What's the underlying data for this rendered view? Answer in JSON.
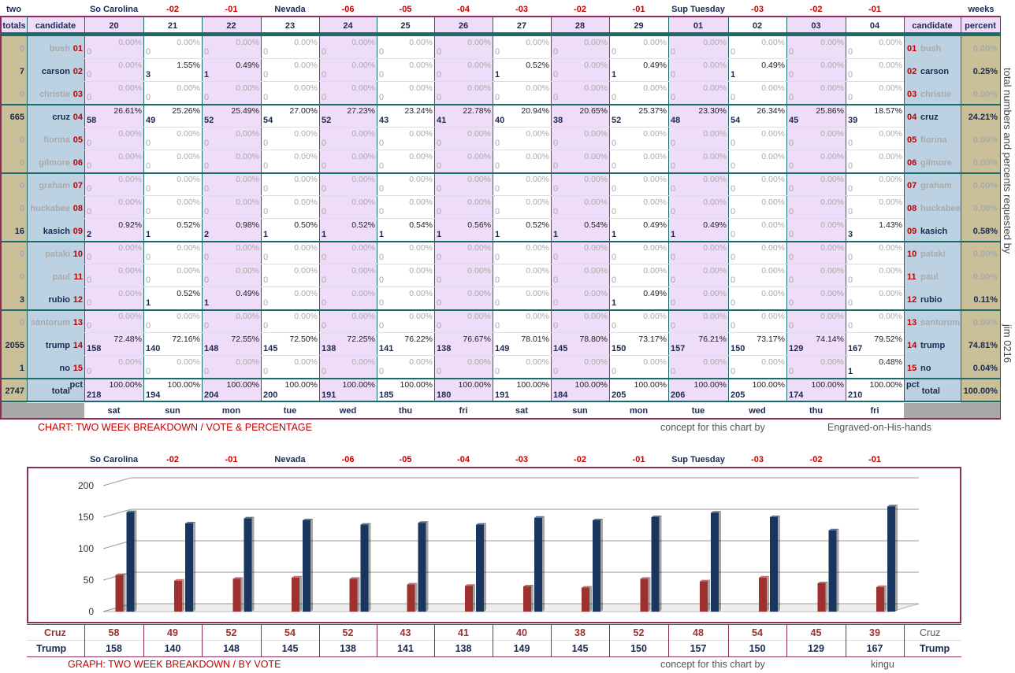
{
  "sheet": {
    "corner_left": "two",
    "corner_right": "weeks",
    "top_labels": [
      "So Carolina",
      "-02",
      "-01",
      "Nevada",
      "-06",
      "-05",
      "-04",
      "-03",
      "-02",
      "-01",
      "Sup Tuesday",
      "-03",
      "-02",
      "-01"
    ],
    "header": {
      "totals": "totals",
      "candidate": "candidate",
      "candidate_right": "candidate",
      "percent": "percent"
    },
    "columns": [
      "20",
      "21",
      "22",
      "23",
      "24",
      "25",
      "26",
      "27",
      "28",
      "29",
      "01",
      "02",
      "03",
      "04"
    ],
    "days": [
      "sat",
      "sun",
      "mon",
      "tue",
      "wed",
      "thu",
      "fri",
      "sat",
      "sun",
      "mon",
      "tue",
      "wed",
      "thu",
      "fri"
    ],
    "side_note": "total numbers and percents requested by",
    "side_note2": "jim 0216",
    "candidates": [
      {
        "name": "bush",
        "num": "01",
        "total": "0",
        "percent": "0.00%",
        "counts": [
          "0",
          "0",
          "0",
          "0",
          "0",
          "0",
          "0",
          "0",
          "0",
          "0",
          "0",
          "0",
          "0",
          "0"
        ],
        "pcts": [
          "0.00%",
          "0.00%",
          "0.00%",
          "0.00%",
          "0.00%",
          "0.00%",
          "0.00%",
          "0.00%",
          "0.00%",
          "0.00%",
          "0.00%",
          "0.00%",
          "0.00%",
          "0.00%"
        ]
      },
      {
        "name": "carson",
        "num": "02",
        "total": "7",
        "percent": "0.25%",
        "counts": [
          "0",
          "3",
          "1",
          "0",
          "0",
          "0",
          "0",
          "1",
          "0",
          "1",
          "0",
          "1",
          "0",
          "0"
        ],
        "pcts": [
          "0.00%",
          "1.55%",
          "0.49%",
          "0.00%",
          "0.00%",
          "0.00%",
          "0.00%",
          "0.52%",
          "0.00%",
          "0.49%",
          "0.00%",
          "0.49%",
          "0.00%",
          "0.00%"
        ]
      },
      {
        "name": "christie",
        "num": "03",
        "total": "0",
        "percent": "0.00%",
        "counts": [
          "0",
          "0",
          "0",
          "0",
          "0",
          "0",
          "0",
          "0",
          "0",
          "0",
          "0",
          "0",
          "0",
          "0"
        ],
        "pcts": [
          "0.00%",
          "0.00%",
          "0.00%",
          "0.00%",
          "0.00%",
          "0.00%",
          "0.00%",
          "0.00%",
          "0.00%",
          "0.00%",
          "0.00%",
          "0.00%",
          "0.00%",
          "0.00%"
        ]
      },
      {
        "name": "cruz",
        "num": "04",
        "total": "665",
        "percent": "24.21%",
        "counts": [
          "58",
          "49",
          "52",
          "54",
          "52",
          "43",
          "41",
          "40",
          "38",
          "52",
          "48",
          "54",
          "45",
          "39"
        ],
        "pcts": [
          "26.61%",
          "25.26%",
          "25.49%",
          "27.00%",
          "27.23%",
          "23.24%",
          "22.78%",
          "20.94%",
          "20.65%",
          "25.37%",
          "23.30%",
          "26.34%",
          "25.86%",
          "18.57%"
        ]
      },
      {
        "name": "fiorina",
        "num": "05",
        "total": "0",
        "percent": "0.00%",
        "counts": [
          "0",
          "0",
          "0",
          "0",
          "0",
          "0",
          "0",
          "0",
          "0",
          "0",
          "0",
          "0",
          "0",
          "0"
        ],
        "pcts": [
          "0.00%",
          "0.00%",
          "0.00%",
          "0.00%",
          "0.00%",
          "0.00%",
          "0.00%",
          "0.00%",
          "0.00%",
          "0.00%",
          "0.00%",
          "0.00%",
          "0.00%",
          "0.00%"
        ]
      },
      {
        "name": "gilmore",
        "num": "06",
        "total": "0",
        "percent": "0.00%",
        "counts": [
          "0",
          "0",
          "0",
          "0",
          "0",
          "0",
          "0",
          "0",
          "0",
          "0",
          "0",
          "0",
          "0",
          "0"
        ],
        "pcts": [
          "0.00%",
          "0.00%",
          "0.00%",
          "0.00%",
          "0.00%",
          "0.00%",
          "0.00%",
          "0.00%",
          "0.00%",
          "0.00%",
          "0.00%",
          "0.00%",
          "0.00%",
          "0.00%"
        ]
      },
      {
        "name": "graham",
        "num": "07",
        "total": "0",
        "percent": "0.00%",
        "counts": [
          "0",
          "0",
          "0",
          "0",
          "0",
          "0",
          "0",
          "0",
          "0",
          "0",
          "0",
          "0",
          "0",
          "0"
        ],
        "pcts": [
          "0.00%",
          "0.00%",
          "0.00%",
          "0.00%",
          "0.00%",
          "0.00%",
          "0.00%",
          "0.00%",
          "0.00%",
          "0.00%",
          "0.00%",
          "0.00%",
          "0.00%",
          "0.00%"
        ]
      },
      {
        "name": "huckabee",
        "num": "08",
        "total": "0",
        "percent": "0.00%",
        "counts": [
          "0",
          "0",
          "0",
          "0",
          "0",
          "0",
          "0",
          "0",
          "0",
          "0",
          "0",
          "0",
          "0",
          "0"
        ],
        "pcts": [
          "0.00%",
          "0.00%",
          "0.00%",
          "0.00%",
          "0.00%",
          "0.00%",
          "0.00%",
          "0.00%",
          "0.00%",
          "0.00%",
          "0.00%",
          "0.00%",
          "0.00%",
          "0.00%"
        ]
      },
      {
        "name": "kasich",
        "num": "09",
        "total": "16",
        "percent": "0.58%",
        "counts": [
          "2",
          "1",
          "2",
          "1",
          "1",
          "1",
          "1",
          "1",
          "1",
          "1",
          "1",
          "0",
          "0",
          "3"
        ],
        "pcts": [
          "0.92%",
          "0.52%",
          "0.98%",
          "0.50%",
          "0.52%",
          "0.54%",
          "0.56%",
          "0.52%",
          "0.54%",
          "0.49%",
          "0.49%",
          "0.00%",
          "0.00%",
          "1.43%"
        ]
      },
      {
        "name": "pataki",
        "num": "10",
        "total": "0",
        "percent": "0.00%",
        "counts": [
          "0",
          "0",
          "0",
          "0",
          "0",
          "0",
          "0",
          "0",
          "0",
          "0",
          "0",
          "0",
          "0",
          "0"
        ],
        "pcts": [
          "0.00%",
          "0.00%",
          "0.00%",
          "0.00%",
          "0.00%",
          "0.00%",
          "0.00%",
          "0.00%",
          "0.00%",
          "0.00%",
          "0.00%",
          "0.00%",
          "0.00%",
          "0.00%"
        ]
      },
      {
        "name": "paul",
        "num": "11",
        "total": "0",
        "percent": "0.00%",
        "counts": [
          "0",
          "0",
          "0",
          "0",
          "0",
          "0",
          "0",
          "0",
          "0",
          "0",
          "0",
          "0",
          "0",
          "0"
        ],
        "pcts": [
          "0.00%",
          "0.00%",
          "0.00%",
          "0.00%",
          "0.00%",
          "0.00%",
          "0.00%",
          "0.00%",
          "0.00%",
          "0.00%",
          "0.00%",
          "0.00%",
          "0.00%",
          "0.00%"
        ]
      },
      {
        "name": "rubio",
        "num": "12",
        "total": "3",
        "percent": "0.11%",
        "counts": [
          "0",
          "1",
          "1",
          "0",
          "0",
          "0",
          "0",
          "0",
          "0",
          "1",
          "0",
          "0",
          "0",
          "0"
        ],
        "pcts": [
          "0.00%",
          "0.52%",
          "0.49%",
          "0.00%",
          "0.00%",
          "0.00%",
          "0.00%",
          "0.00%",
          "0.00%",
          "0.49%",
          "0.00%",
          "0.00%",
          "0.00%",
          "0.00%"
        ]
      },
      {
        "name": "santorum",
        "num": "13",
        "total": "0",
        "percent": "0.00%",
        "counts": [
          "0",
          "0",
          "0",
          "0",
          "0",
          "0",
          "0",
          "0",
          "0",
          "0",
          "0",
          "0",
          "0",
          "0"
        ],
        "pcts": [
          "0.00%",
          "0.00%",
          "0.00%",
          "0.00%",
          "0.00%",
          "0.00%",
          "0.00%",
          "0.00%",
          "0.00%",
          "0.00%",
          "0.00%",
          "0.00%",
          "0.00%",
          "0.00%"
        ]
      },
      {
        "name": "trump",
        "num": "14",
        "total": "2055",
        "percent": "74.81%",
        "counts": [
          "158",
          "140",
          "148",
          "145",
          "138",
          "141",
          "138",
          "149",
          "145",
          "150",
          "157",
          "150",
          "129",
          "167"
        ],
        "pcts": [
          "72.48%",
          "72.16%",
          "72.55%",
          "72.50%",
          "72.25%",
          "76.22%",
          "76.67%",
          "78.01%",
          "78.80%",
          "73.17%",
          "76.21%",
          "73.17%",
          "74.14%",
          "79.52%"
        ]
      },
      {
        "name": "no",
        "num": "15",
        "total": "1",
        "percent": "0.04%",
        "counts": [
          "0",
          "0",
          "0",
          "0",
          "0",
          "0",
          "0",
          "0",
          "0",
          "0",
          "0",
          "0",
          "0",
          "1"
        ],
        "pcts": [
          "0.00%",
          "0.00%",
          "0.00%",
          "0.00%",
          "0.00%",
          "0.00%",
          "0.00%",
          "0.00%",
          "0.00%",
          "0.00%",
          "0.00%",
          "0.00%",
          "0.00%",
          "0.48%"
        ]
      }
    ],
    "totals_row": {
      "total": "2747",
      "label": "total",
      "pct_label": "pct",
      "percent": "100.00%",
      "counts": [
        "218",
        "194",
        "204",
        "200",
        "191",
        "185",
        "180",
        "191",
        "184",
        "205",
        "206",
        "205",
        "174",
        "210"
      ],
      "pcts": [
        "100.00%",
        "100.00%",
        "100.00%",
        "100.00%",
        "100.00%",
        "100.00%",
        "100.00%",
        "100.00%",
        "100.00%",
        "100.00%",
        "100.00%",
        "100.00%",
        "100.00%",
        "100.00%"
      ]
    },
    "caption": "CHART: TWO WEEK BREAKDOWN / VOTE & PERCENTAGE",
    "concept": "concept for this chart by",
    "author": "Engraved-on-His-hands"
  },
  "graph": {
    "top_labels": [
      "So Carolina",
      "-02",
      "-01",
      "Nevada",
      "-06",
      "-05",
      "-04",
      "-03",
      "-02",
      "-01",
      "Sup Tuesday",
      "-03",
      "-02",
      "-01"
    ],
    "caption": "GRAPH: TWO WEEK BREAKDOWN / BY VOTE",
    "concept": "concept for this chart by",
    "author": "kingu",
    "cruz_label": "Cruz",
    "trump_label": "Trump",
    "cruz_color": "#a0302e",
    "trump_color": "#1a3560"
  },
  "chart_data": {
    "type": "bar",
    "categories": [
      "20",
      "21",
      "22",
      "23",
      "24",
      "25",
      "26",
      "27",
      "28",
      "29",
      "01",
      "02",
      "03",
      "04"
    ],
    "series": [
      {
        "name": "Cruz",
        "values": [
          58,
          49,
          52,
          54,
          52,
          43,
          41,
          40,
          38,
          52,
          48,
          54,
          45,
          39
        ]
      },
      {
        "name": "Trump",
        "values": [
          158,
          140,
          148,
          145,
          138,
          141,
          138,
          149,
          145,
          150,
          157,
          150,
          129,
          167
        ]
      }
    ],
    "yticks": [
      "0",
      "50",
      "100",
      "150",
      "200"
    ],
    "ylim": [
      0,
      200
    ],
    "grid": true
  }
}
